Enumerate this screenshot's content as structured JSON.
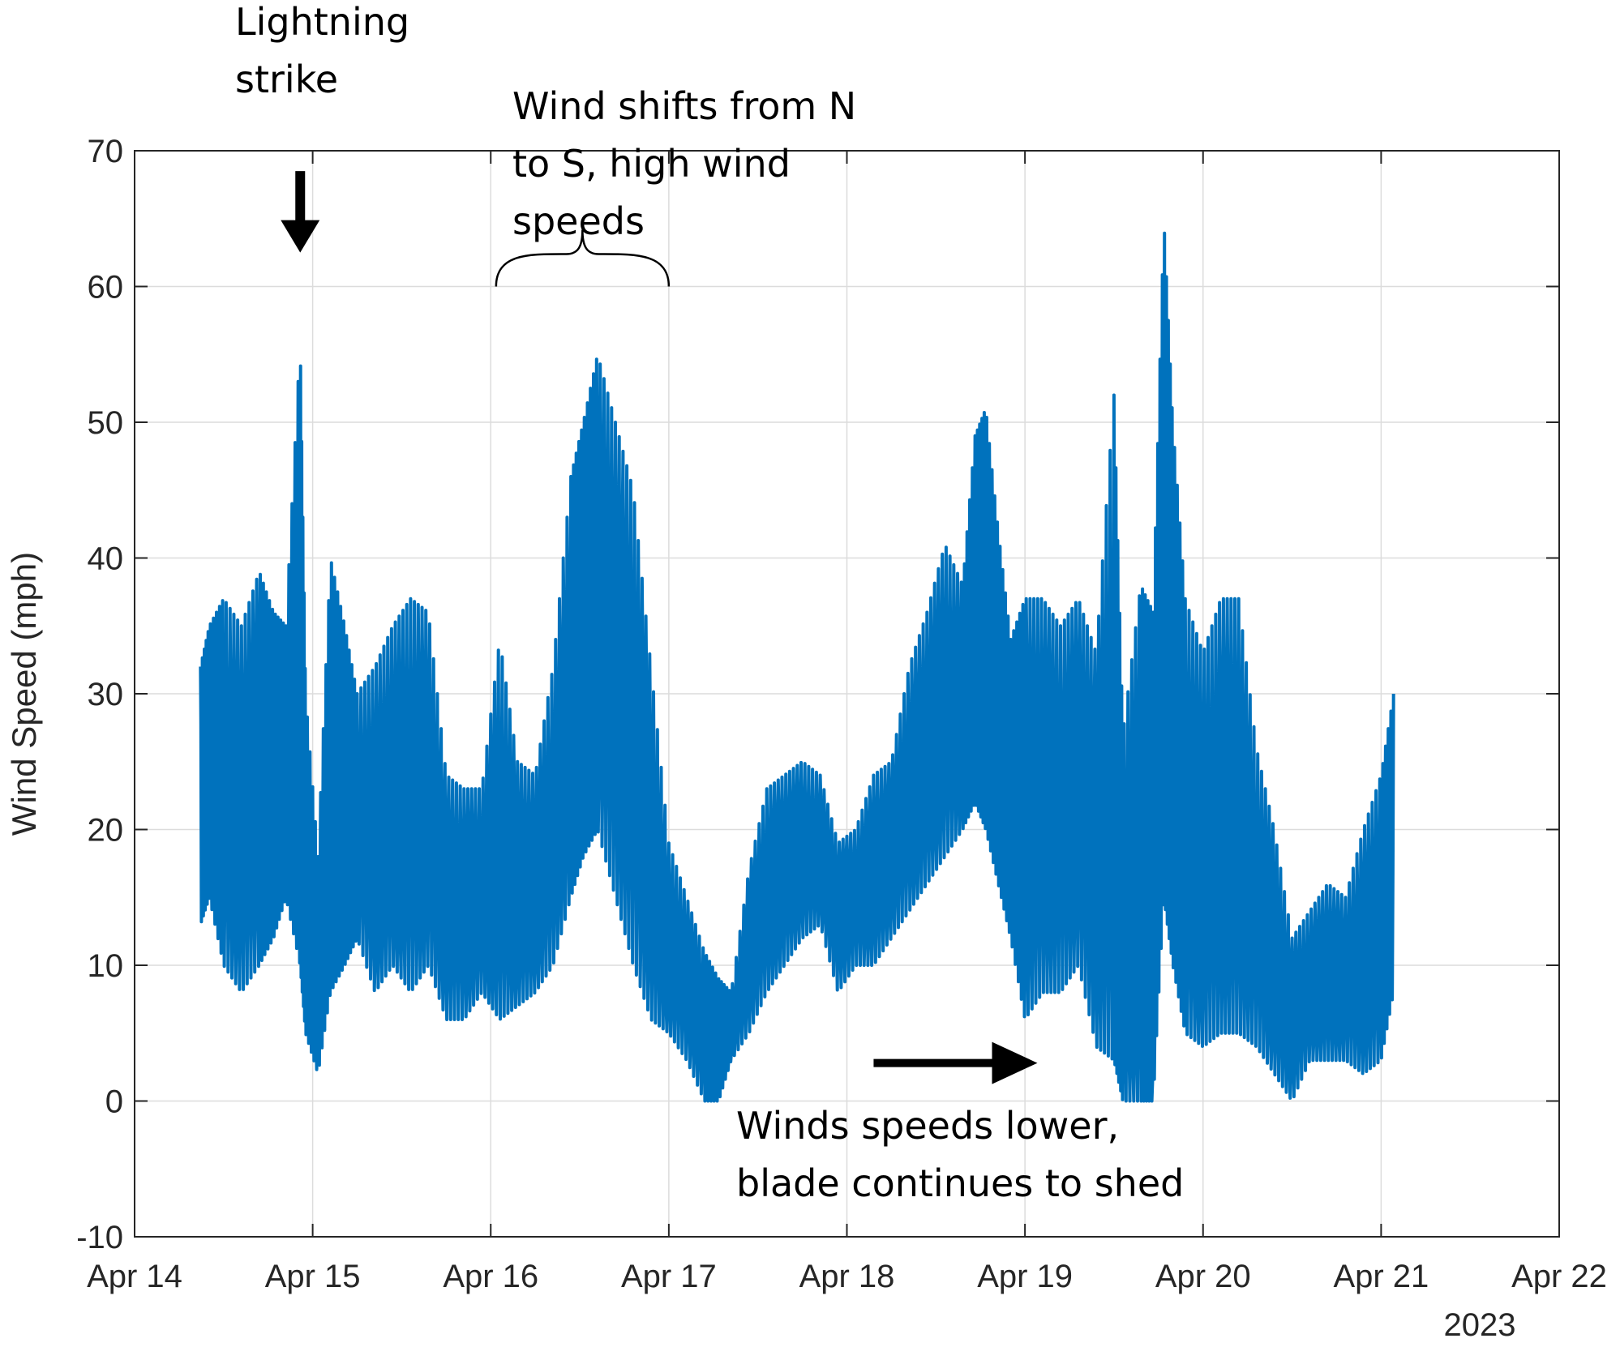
{
  "chart_data": {
    "type": "line",
    "title": "",
    "xlabel": "",
    "ylabel": "Wind Speed (mph)",
    "x_unit": "days",
    "x_ticks": [
      "Apr 14",
      "Apr 15",
      "Apr 16",
      "Apr 17",
      "Apr 18",
      "Apr 19",
      "Apr 20",
      "Apr 21",
      "Apr 22"
    ],
    "x_tick_values": [
      14,
      15,
      16,
      17,
      18,
      19,
      20,
      21,
      22
    ],
    "x_secondary_label": "2023",
    "xlim": [
      14,
      22
    ],
    "ylim": [
      -10,
      70
    ],
    "y_ticks": [
      -10,
      0,
      10,
      20,
      30,
      40,
      50,
      60,
      70
    ],
    "grid": true,
    "series_color": "#0072BD",
    "series": [
      {
        "x": [
          14.37,
          14.42,
          14.5,
          14.6,
          14.7,
          14.78,
          14.85,
          14.93,
          14.96,
          15.03,
          15.1,
          15.18,
          15.25,
          15.35,
          15.45,
          15.55,
          15.65,
          15.75,
          15.85,
          15.95,
          16.05,
          16.15,
          16.25,
          16.35,
          16.45,
          16.52,
          16.6,
          16.7,
          16.8,
          16.9,
          17.0,
          17.1,
          17.2,
          17.28,
          17.35,
          17.45,
          17.55,
          17.65,
          17.75,
          17.85,
          17.95,
          18.05,
          18.15,
          18.25,
          18.35,
          18.45,
          18.55,
          18.65,
          18.72,
          18.78,
          18.85,
          18.92,
          19.0,
          19.1,
          19.2,
          19.3,
          19.4,
          19.5,
          19.55,
          19.65,
          19.72,
          19.78,
          19.83,
          19.9,
          20.0,
          20.1,
          20.2,
          20.3,
          20.4,
          20.5,
          20.6,
          20.7,
          20.8,
          20.9,
          21.0,
          21.07
        ],
        "high": [
          32,
          35,
          37,
          35,
          39,
          36,
          35,
          56,
          30,
          18,
          40,
          35,
          30,
          32,
          35,
          37,
          36,
          24,
          23,
          23,
          34,
          25,
          24,
          32,
          46,
          50,
          55,
          50,
          45,
          32,
          19,
          15,
          11,
          9,
          8,
          17,
          23,
          24,
          25,
          24,
          19,
          20,
          24,
          25,
          32,
          36,
          41,
          38,
          49,
          51,
          42,
          34,
          37,
          37,
          35,
          37,
          33,
          52,
          27,
          38,
          36,
          65,
          50,
          37,
          33,
          37,
          37,
          26,
          20,
          12,
          14,
          16,
          15,
          20,
          24,
          30
        ],
        "low": [
          13,
          15,
          10,
          8,
          10,
          12,
          15,
          10,
          5,
          2,
          8,
          10,
          12,
          8,
          10,
          8,
          10,
          6,
          6,
          8,
          6,
          7,
          8,
          10,
          15,
          18,
          20,
          15,
          10,
          6,
          5,
          3,
          0,
          0,
          3,
          5,
          8,
          10,
          12,
          13,
          8,
          10,
          10,
          12,
          14,
          16,
          18,
          20,
          22,
          20,
          16,
          12,
          6,
          8,
          8,
          10,
          4,
          3,
          0,
          0,
          0,
          15,
          10,
          5,
          4,
          5,
          5,
          4,
          2,
          0,
          3,
          3,
          3,
          2,
          3,
          8
        ],
        "mid": [
          22,
          24,
          22,
          20,
          24,
          24,
          25,
          28,
          15,
          8,
          22,
          21,
          20,
          18,
          20,
          20,
          22,
          15,
          14,
          15,
          17,
          15,
          15,
          20,
          30,
          34,
          36,
          32,
          26,
          18,
          11,
          9,
          5,
          4,
          5,
          11,
          15,
          17,
          18,
          18,
          14,
          15,
          17,
          18,
          22,
          25,
          28,
          28,
          34,
          35,
          28,
          22,
          20,
          22,
          21,
          23,
          18,
          20,
          10,
          15,
          12,
          35,
          28,
          18,
          16,
          20,
          20,
          14,
          10,
          6,
          8,
          9,
          9,
          10,
          12,
          18
        ]
      }
    ],
    "annotations": [
      {
        "text": [
          "Lightning",
          "strike"
        ],
        "marker": "down-arrow",
        "x": 14.93,
        "y_arrow_start": 68.5,
        "y_arrow_end": 62.5
      },
      {
        "text": [
          "Wind shifts from N",
          "to S, high wind",
          "speeds"
        ],
        "marker": "brace",
        "x_start": 16.03,
        "x_end": 17.0,
        "y": 60.0
      },
      {
        "text": [
          "Winds speeds lower,",
          "blade continues to shed"
        ],
        "marker": "right-arrow",
        "x_start": 18.15,
        "x_end": 19.07,
        "y": 2.8
      }
    ]
  }
}
